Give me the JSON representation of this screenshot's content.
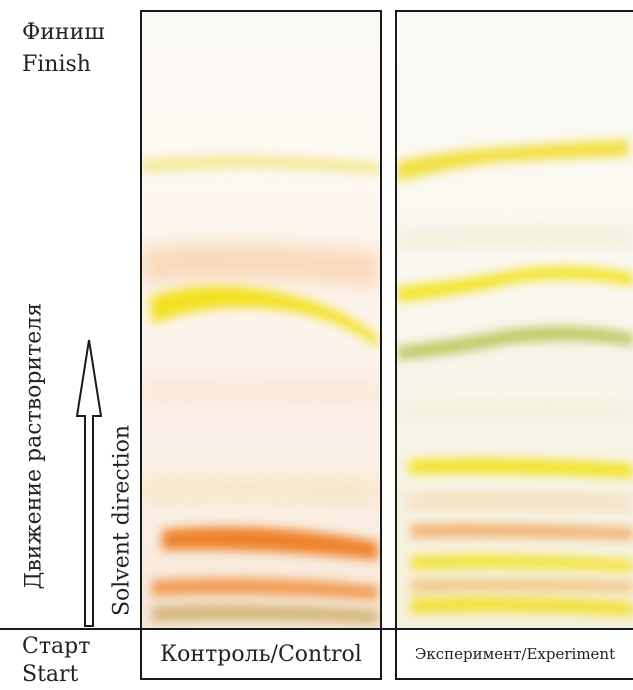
{
  "finish": {
    "ru": "Финиш",
    "en": "Finish"
  },
  "start": {
    "ru": "Старт",
    "en": "Start"
  },
  "direction": {
    "ru": "Движение растворителя",
    "en": "Solvent direction"
  },
  "lanes": {
    "control": {
      "caption": "Контроль/Control"
    },
    "experiment": {
      "caption": "Эксперимент/Experiment"
    }
  },
  "colors": {
    "yellow": "#f2e01a",
    "orange": "#f08a2a",
    "peach": "#f7b98a",
    "olive": "#b9c25a",
    "border": "#1a1a1a"
  }
}
